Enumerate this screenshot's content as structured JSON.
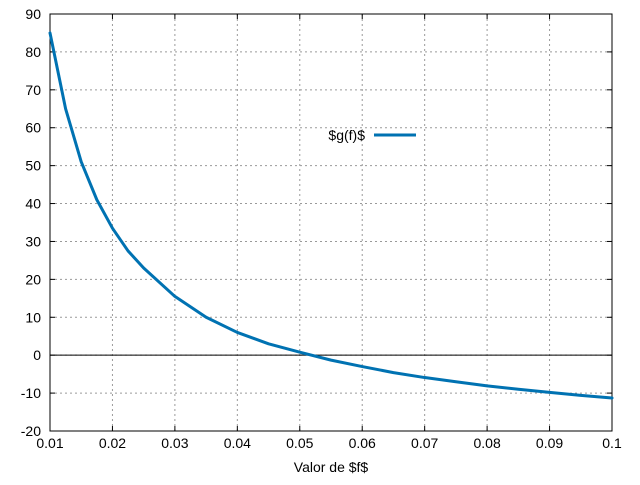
{
  "chart_data": {
    "type": "line",
    "title": "",
    "xlabel": "Valor de $f$",
    "ylabel": "",
    "xlim": [
      0.01,
      0.1
    ],
    "ylim": [
      -20,
      90
    ],
    "x_ticks": [
      "0.01",
      "0.02",
      "0.03",
      "0.04",
      "0.05",
      "0.06",
      "0.07",
      "0.08",
      "0.09",
      "0.1"
    ],
    "y_ticks": [
      "-20",
      "-10",
      "0",
      "10",
      "20",
      "30",
      "40",
      "50",
      "60",
      "70",
      "80",
      "90"
    ],
    "grid": true,
    "legend": {
      "placement": "top-center",
      "entries": [
        "$g(f)$"
      ]
    },
    "reference_line": {
      "y": 0
    },
    "series": [
      {
        "name": "$g(f)$",
        "color": "#0072b2",
        "x": [
          0.01,
          0.0125,
          0.015,
          0.0175,
          0.02,
          0.0225,
          0.025,
          0.03,
          0.035,
          0.04,
          0.045,
          0.05,
          0.055,
          0.06,
          0.065,
          0.07,
          0.075,
          0.08,
          0.085,
          0.09,
          0.095,
          0.1
        ],
        "y": [
          85,
          65,
          51,
          41,
          33.5,
          27.5,
          23,
          15.5,
          10,
          6,
          3,
          0.8,
          -1.3,
          -3,
          -4.6,
          -5.9,
          -7,
          -8.1,
          -9,
          -9.8,
          -10.6,
          -11.3
        ]
      }
    ]
  }
}
